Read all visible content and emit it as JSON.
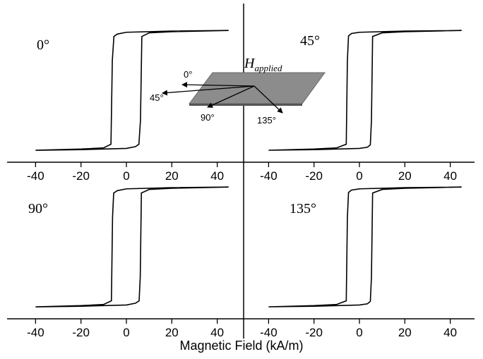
{
  "xlabel": "Magnetic Field (kA/m)",
  "inset": {
    "field": "H",
    "field_subscript": "applied",
    "directions": [
      "0°",
      "45°",
      "90°",
      "135°"
    ]
  },
  "chart_data": [
    {
      "type": "line",
      "label": "0°",
      "color": "#000000",
      "xlim": [
        -51,
        51
      ],
      "ylim": [
        -1.2,
        1.45
      ],
      "xticks": [
        -40,
        -20,
        0,
        20,
        40
      ],
      "x": [
        45,
        20,
        0,
        -4,
        -5.5,
        -6.2,
        -6.8,
        -10,
        -20,
        -40,
        -40,
        -20,
        0,
        4,
        5.5,
        6.2,
        6.8,
        10,
        20,
        45
      ],
      "values": [
        1.0,
        0.99,
        0.97,
        0.94,
        0.9,
        0.5,
        -0.9,
        -0.96,
        -0.98,
        -1.0,
        -1.0,
        -0.99,
        -0.97,
        -0.94,
        -0.9,
        -0.5,
        0.9,
        0.96,
        0.98,
        1.0
      ]
    },
    {
      "type": "line",
      "label": "45°",
      "color": "#000000",
      "xlim": [
        -51,
        51
      ],
      "ylim": [
        -1.2,
        1.45
      ],
      "xticks": [
        -40,
        -20,
        0,
        20,
        40
      ],
      "x": [
        45,
        20,
        0,
        -3.5,
        -4.8,
        -5.3,
        -5.8,
        -10,
        -20,
        -40,
        -40,
        -20,
        0,
        3.5,
        4.8,
        5.3,
        5.8,
        10,
        20,
        45
      ],
      "values": [
        1.0,
        0.99,
        0.97,
        0.95,
        0.91,
        0.5,
        -0.9,
        -0.96,
        -0.98,
        -1.0,
        -1.0,
        -0.99,
        -0.97,
        -0.95,
        -0.91,
        -0.5,
        0.9,
        0.96,
        0.98,
        1.0
      ]
    },
    {
      "type": "line",
      "label": "90°",
      "color": "#000000",
      "xlim": [
        -51,
        51
      ],
      "ylim": [
        -1.2,
        1.45
      ],
      "xticks": [
        -40,
        -20,
        0,
        20,
        40
      ],
      "x": [
        45,
        20,
        0,
        -4,
        -5.6,
        -6.1,
        -6.6,
        -10,
        -20,
        -40,
        -40,
        -20,
        0,
        4,
        5.6,
        6.1,
        6.6,
        10,
        20,
        45
      ],
      "values": [
        1.0,
        0.99,
        0.97,
        0.94,
        0.9,
        0.5,
        -0.9,
        -0.96,
        -0.98,
        -1.0,
        -1.0,
        -0.99,
        -0.97,
        -0.94,
        -0.9,
        -0.5,
        0.9,
        0.96,
        0.98,
        1.0
      ]
    },
    {
      "type": "line",
      "label": "135°",
      "color": "#000000",
      "xlim": [
        -51,
        51
      ],
      "ylim": [
        -1.2,
        1.45
      ],
      "xticks": [
        -40,
        -20,
        0,
        20,
        40
      ],
      "x": [
        45,
        20,
        0,
        -3.5,
        -4.8,
        -5.3,
        -5.8,
        -10,
        -20,
        -40,
        -40,
        -20,
        0,
        3.5,
        4.8,
        5.3,
        5.8,
        10,
        20,
        45
      ],
      "values": [
        1.0,
        0.99,
        0.97,
        0.95,
        0.91,
        0.5,
        -0.9,
        -0.96,
        -0.98,
        -1.0,
        -1.0,
        -0.99,
        -0.97,
        -0.95,
        -0.91,
        -0.5,
        0.9,
        0.96,
        0.98,
        1.0
      ]
    }
  ]
}
